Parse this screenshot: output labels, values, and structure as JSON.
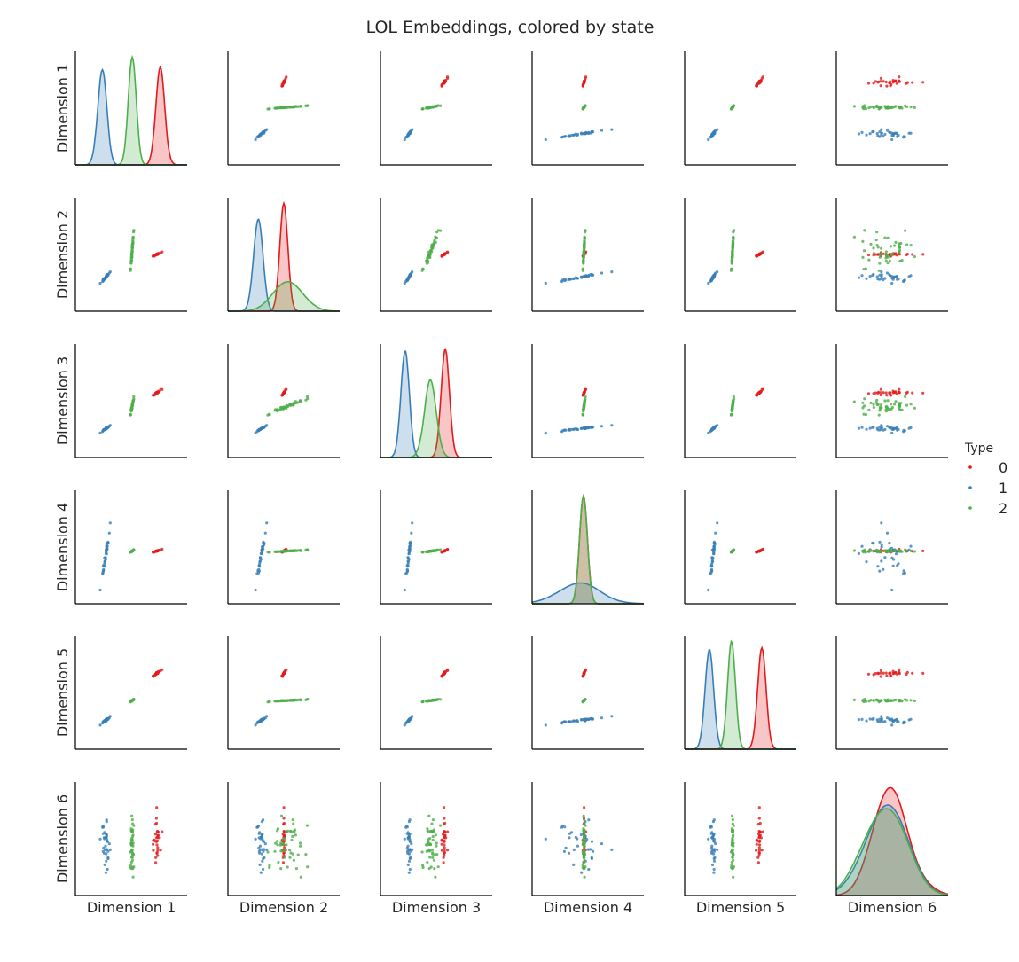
{
  "chart_data": {
    "type": "scatter",
    "title": "LOL Embeddings, colored by state",
    "dimensions": [
      "Dimension 1",
      "Dimension 2",
      "Dimension 3",
      "Dimension 4",
      "Dimension 5",
      "Dimension 6"
    ],
    "diagonal": "kde",
    "grid": false,
    "legend": {
      "title": "Type",
      "placement": "right",
      "entries": [
        "0",
        "1",
        "2"
      ]
    },
    "series": [
      {
        "name": "0",
        "color": "#e41a1c",
        "centers": [
          0.76,
          0.5,
          0.58,
          0.46,
          0.69,
          0.5
        ],
        "spreads": [
          0.025,
          0.012,
          0.018,
          0.008,
          0.02,
          0.12
        ],
        "n": 30
      },
      {
        "name": "1",
        "color": "#377eb8",
        "centers": [
          0.24,
          0.27,
          0.22,
          0.42,
          0.22,
          0.45
        ],
        "spreads": [
          0.025,
          0.03,
          0.018,
          0.15,
          0.02,
          0.15
        ],
        "n": 35
      },
      {
        "name": "2",
        "color": "#4daf4a",
        "centers": [
          0.51,
          0.55,
          0.45,
          0.46,
          0.42,
          0.43
        ],
        "spreads": [
          0.008,
          0.1,
          0.04,
          0.006,
          0.006,
          0.14
        ],
        "n": 50
      }
    ],
    "axis_ranges": [
      [
        0,
        1
      ],
      [
        0,
        1
      ],
      [
        0,
        1
      ],
      [
        0,
        1
      ],
      [
        0,
        1
      ],
      [
        0,
        1
      ]
    ]
  }
}
